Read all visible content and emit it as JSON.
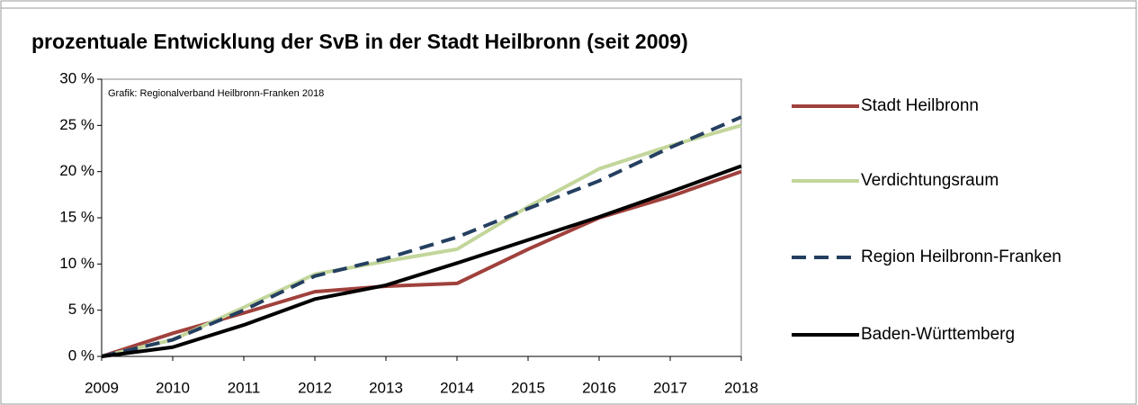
{
  "chart_data": {
    "type": "line",
    "title": "prozentuale Entwicklung der SvB in der Stadt Heilbronn (seit 2009)",
    "annotation": "Grafik: Regionalverband Heilbronn-Franken 2018",
    "x": [
      2009,
      2010,
      2011,
      2012,
      2013,
      2014,
      2015,
      2016,
      2017,
      2018
    ],
    "xlim": [
      2009,
      2018
    ],
    "xticks": [
      2009,
      2010,
      2011,
      2012,
      2013,
      2014,
      2015,
      2016,
      2017,
      2018
    ],
    "ylim": [
      0,
      30
    ],
    "yticks": [
      {
        "value": 0,
        "label": "0 %"
      },
      {
        "value": 5,
        "label": "5 %"
      },
      {
        "value": 10,
        "label": "10 %"
      },
      {
        "value": 15,
        "label": "15 %"
      },
      {
        "value": 20,
        "label": "20 %"
      },
      {
        "value": 25,
        "label": "25 %"
      },
      {
        "value": 30,
        "label": "30 %"
      }
    ],
    "legend": "right",
    "series": [
      {
        "name": "Stadt Heilbronn",
        "color": "#a0413c",
        "line_style": "solid",
        "values": [
          0,
          2.5,
          4.7,
          7.0,
          7.6,
          7.9,
          11.6,
          15.0,
          17.3,
          20.0
        ]
      },
      {
        "name": "Verdichtungsraum",
        "color": "#c3d69b",
        "line_style": "solid",
        "values": [
          0,
          1.8,
          5.3,
          8.9,
          10.3,
          11.6,
          16.2,
          20.3,
          22.8,
          25.0
        ]
      },
      {
        "name": "Region Heilbronn-Franken",
        "color": "#243f60",
        "line_style": "dashed",
        "values": [
          0,
          1.8,
          5.0,
          8.7,
          10.6,
          12.9,
          16.0,
          19.0,
          22.6,
          25.9
        ]
      },
      {
        "name": "Baden-Württemberg",
        "color": "#000000",
        "line_style": "solid",
        "values": [
          0,
          1.0,
          3.4,
          6.2,
          7.7,
          10.1,
          12.6,
          15.1,
          17.8,
          20.6
        ]
      }
    ]
  }
}
